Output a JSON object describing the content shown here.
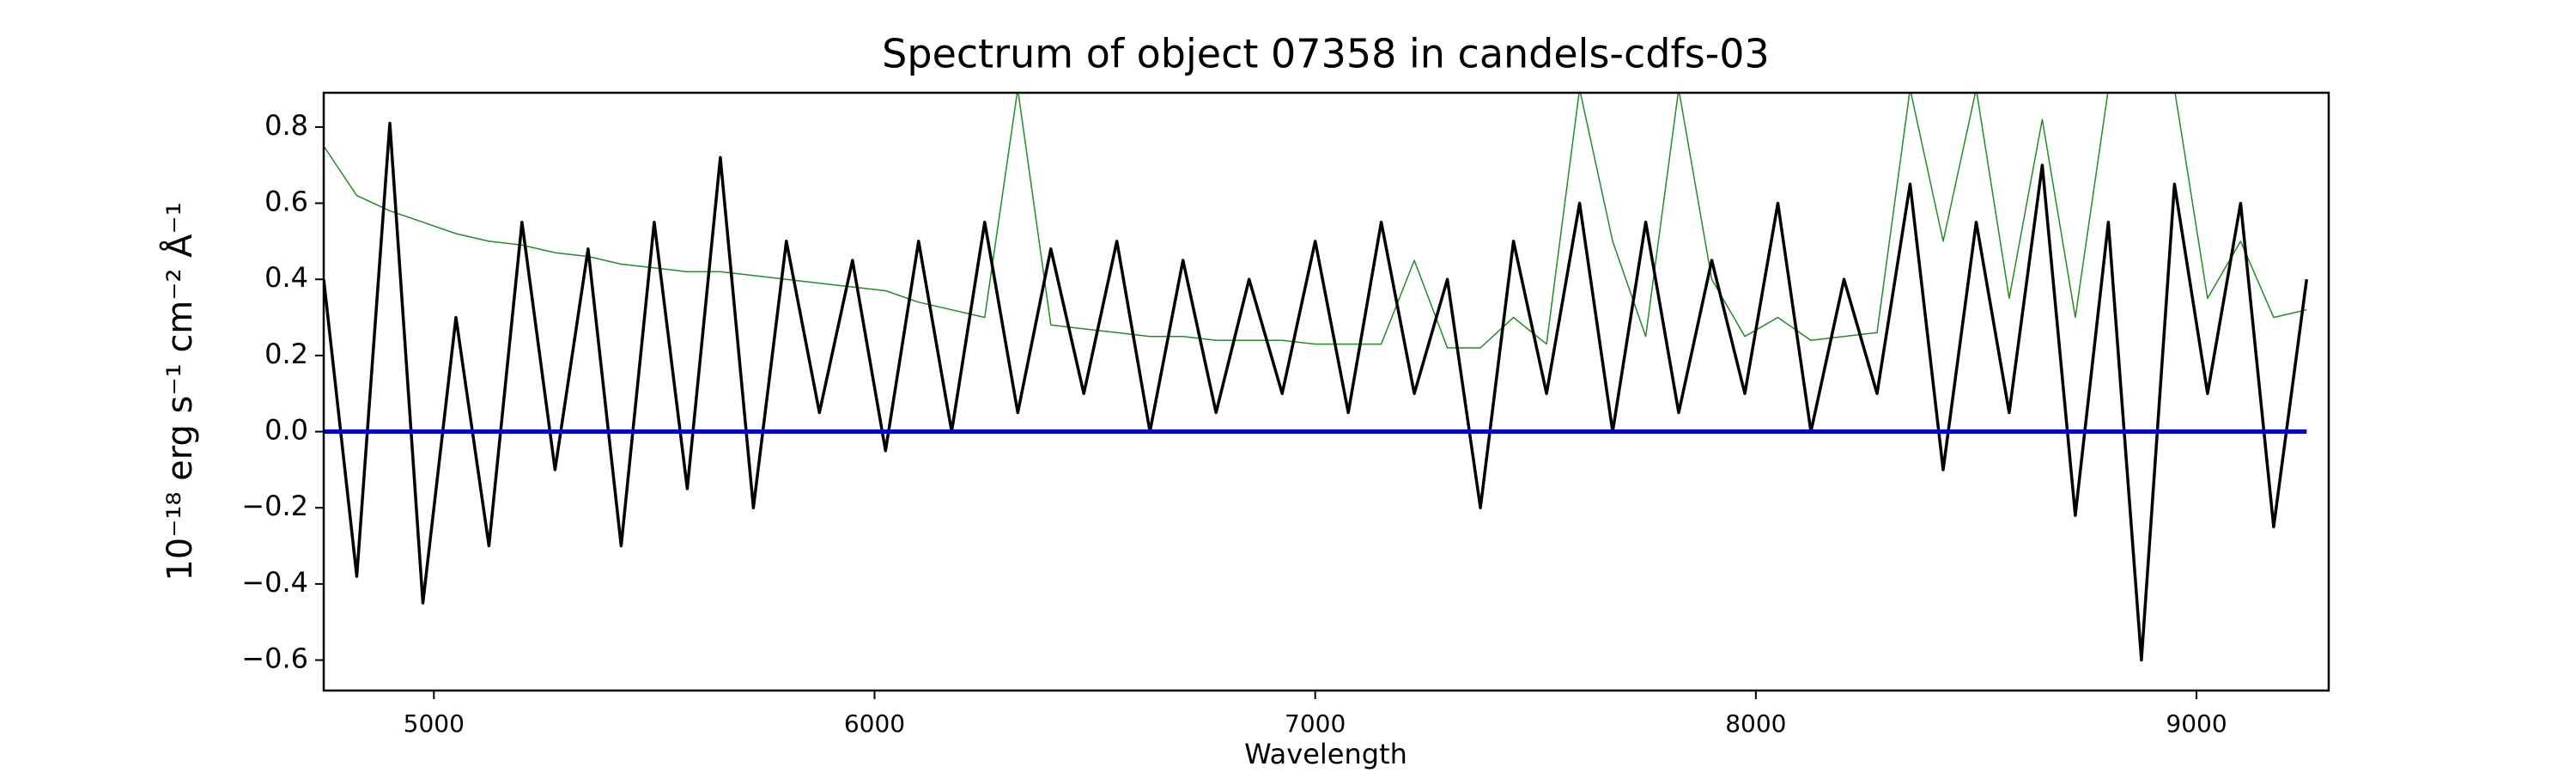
{
  "chart_data": {
    "type": "line",
    "title": "Spectrum of object 07358 in candels-cdfs-03",
    "xlabel": "Wavelength",
    "ylabel": "10⁻¹⁸ erg s⁻¹ cm⁻² Å⁻¹",
    "x": [
      4750,
      4825,
      4900,
      4975,
      5050,
      5125,
      5200,
      5275,
      5350,
      5425,
      5500,
      5575,
      5650,
      5725,
      5800,
      5875,
      5950,
      6025,
      6100,
      6175,
      6250,
      6325,
      6400,
      6475,
      6550,
      6625,
      6700,
      6775,
      6850,
      6925,
      7000,
      7075,
      7150,
      7225,
      7300,
      7375,
      7450,
      7525,
      7600,
      7675,
      7750,
      7825,
      7900,
      7975,
      8050,
      8125,
      8200,
      8275,
      8350,
      8425,
      8500,
      8575,
      8650,
      8725,
      8800,
      8875,
      8950,
      9025,
      9100,
      9175,
      9250
    ],
    "series": [
      {
        "color": "#228b22",
        "width": 1.5,
        "values": [
          0.75,
          0.62,
          0.58,
          0.55,
          0.52,
          0.5,
          0.49,
          0.47,
          0.46,
          0.44,
          0.43,
          0.42,
          0.42,
          0.41,
          0.4,
          0.39,
          0.38,
          0.37,
          0.34,
          0.32,
          0.3,
          0.9,
          0.28,
          0.27,
          0.26,
          0.25,
          0.25,
          0.24,
          0.24,
          0.24,
          0.23,
          0.23,
          0.23,
          0.45,
          0.22,
          0.22,
          0.3,
          0.23,
          0.9,
          0.5,
          0.25,
          0.9,
          0.4,
          0.25,
          0.3,
          0.24,
          0.25,
          0.26,
          0.9,
          0.5,
          0.9,
          0.35,
          0.82,
          0.3,
          0.9,
          0.9,
          0.9,
          0.35,
          0.5,
          0.3,
          0.32
        ]
      },
      {
        "color": "#000000",
        "width": 3.5,
        "values": [
          0.4,
          -0.38,
          0.81,
          -0.45,
          0.3,
          -0.3,
          0.55,
          -0.1,
          0.48,
          -0.3,
          0.55,
          -0.15,
          0.72,
          -0.2,
          0.5,
          0.05,
          0.45,
          -0.05,
          0.5,
          0.0,
          0.55,
          0.05,
          0.48,
          0.1,
          0.5,
          0.0,
          0.45,
          0.05,
          0.4,
          0.1,
          0.5,
          0.05,
          0.55,
          0.1,
          0.4,
          -0.2,
          0.5,
          0.1,
          0.6,
          0.0,
          0.55,
          0.05,
          0.45,
          0.1,
          0.6,
          0.0,
          0.4,
          0.1,
          0.65,
          -0.1,
          0.55,
          0.05,
          0.7,
          -0.22,
          0.55,
          -0.6,
          0.65,
          0.1,
          0.6,
          -0.25,
          0.4
        ]
      },
      {
        "color": "#0000cd",
        "width": 5,
        "values": [
          0,
          0,
          0,
          0,
          0,
          0,
          0,
          0,
          0,
          0,
          0,
          0,
          0,
          0,
          0,
          0,
          0,
          0,
          0,
          0,
          0,
          0,
          0,
          0,
          0,
          0,
          0,
          0,
          0,
          0,
          0,
          0,
          0,
          0,
          0,
          0,
          0,
          0,
          0,
          0,
          0,
          0,
          0,
          0,
          0,
          0,
          0,
          0,
          0,
          0,
          0,
          0,
          0,
          0,
          0,
          0,
          0,
          0,
          0,
          0,
          0
        ]
      }
    ],
    "xlim": [
      4750,
      9300
    ],
    "ylim": [
      -0.68,
      0.89
    ],
    "xticks": [
      5000,
      6000,
      7000,
      8000,
      9000
    ],
    "yticks": [
      {
        "value": -0.6,
        "label": "−0.6"
      },
      {
        "value": -0.4,
        "label": "−0.4"
      },
      {
        "value": -0.2,
        "label": "−0.2"
      },
      {
        "value": 0,
        "label": "0.0"
      },
      0.2,
      0.4,
      0.6,
      0.8
    ],
    "grid": false
  }
}
